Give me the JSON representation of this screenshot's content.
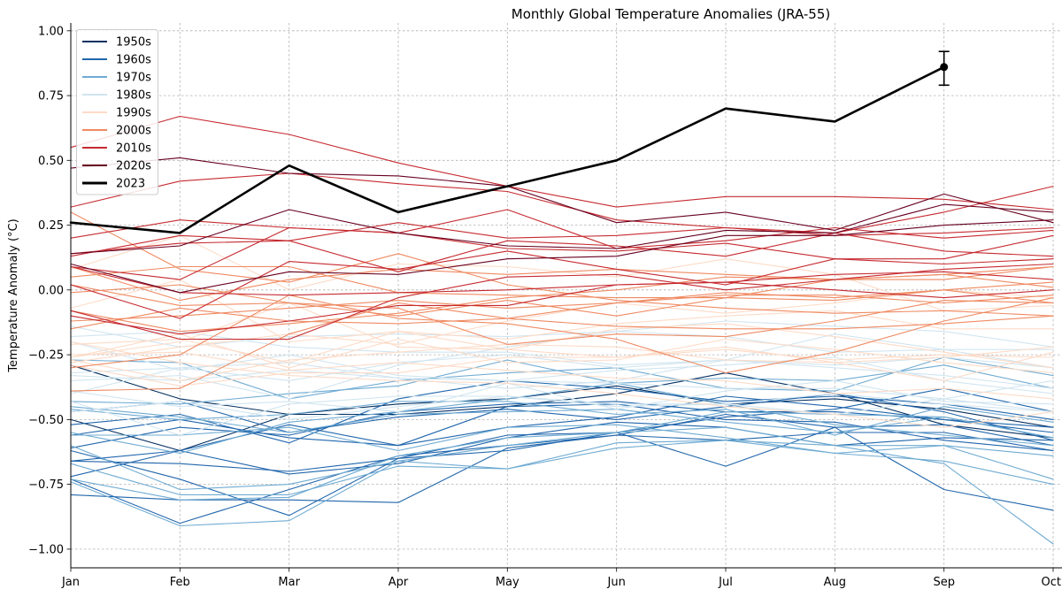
{
  "chart_data": {
    "type": "line",
    "title": "Monthly Global Temperature Anomalies (JRA-55)",
    "ylabel": "Temperature Anomaly (°C)",
    "categories": [
      "Jan",
      "Feb",
      "Mar",
      "Apr",
      "May",
      "Jun",
      "Jul",
      "Aug",
      "Sep",
      "Oct"
    ],
    "ylim": [
      -1.072,
      1.03
    ],
    "yticks": [
      1.0,
      0.75,
      0.5,
      0.25,
      0.0,
      -0.25,
      -0.5,
      -0.75,
      -1.0
    ],
    "ytick_labels": [
      "1.00",
      "0.75",
      "0.50",
      "0.25",
      "0.00",
      "−0.25",
      "−0.50",
      "−0.75",
      "−1.00"
    ],
    "grid": true,
    "legend_position": "upper left",
    "series": [
      {
        "name": "1950s",
        "color": "#053061",
        "lines": [
          [
            -0.29,
            -0.42,
            -0.48,
            -0.48,
            -0.45,
            -0.4,
            -0.32,
            -0.4,
            -0.52,
            -0.57
          ],
          [
            -0.5,
            -0.62,
            -0.48,
            -0.44,
            -0.42,
            -0.37,
            -0.44,
            -0.42,
            -0.46,
            -0.53
          ]
        ]
      },
      {
        "name": "1960s",
        "color": "#2166ac",
        "lines": [
          [
            -0.61,
            -0.53,
            -0.56,
            -0.47,
            -0.44,
            -0.43,
            -0.47,
            -0.47,
            -0.5,
            -0.55
          ],
          [
            -0.47,
            -0.43,
            -0.55,
            -0.49,
            -0.46,
            -0.5,
            -0.45,
            -0.4,
            -0.47,
            -0.58
          ],
          [
            -0.56,
            -0.5,
            -0.57,
            -0.6,
            -0.53,
            -0.49,
            -0.41,
            -0.45,
            -0.5,
            -0.53
          ],
          [
            -0.66,
            -0.67,
            -0.7,
            -0.65,
            -0.62,
            -0.55,
            -0.49,
            -0.46,
            -0.38,
            -0.47
          ],
          [
            -0.62,
            -0.73,
            -0.87,
            -0.65,
            -0.56,
            -0.55,
            -0.68,
            -0.53,
            -0.77,
            -0.85
          ],
          [
            -0.72,
            -0.62,
            -0.71,
            -0.67,
            -0.57,
            -0.51,
            -0.53,
            -0.6,
            -0.57,
            -0.58
          ],
          [
            -0.66,
            -0.62,
            -0.52,
            -0.6,
            -0.45,
            -0.44,
            -0.5,
            -0.51,
            -0.58,
            -0.62
          ],
          [
            -0.73,
            -0.9,
            -0.77,
            -0.64,
            -0.6,
            -0.56,
            -0.48,
            -0.53,
            -0.52,
            -0.6
          ],
          [
            -0.79,
            -0.81,
            -0.81,
            -0.82,
            -0.61,
            -0.56,
            -0.58,
            -0.55,
            -0.55,
            -0.62
          ],
          [
            -0.52,
            -0.48,
            -0.59,
            -0.42,
            -0.35,
            -0.38,
            -0.43,
            -0.41,
            -0.44,
            -0.5
          ]
        ]
      },
      {
        "name": "1970s",
        "color": "#6fabd2",
        "lines": [
          [
            -0.45,
            -0.49,
            -0.55,
            -0.48,
            -0.47,
            -0.46,
            -0.51,
            -0.55,
            -0.49,
            -0.57
          ],
          [
            -0.6,
            -0.77,
            -0.75,
            -0.66,
            -0.69,
            -0.61,
            -0.58,
            -0.6,
            -0.6,
            -0.73
          ],
          [
            -0.73,
            -0.81,
            -0.8,
            -0.64,
            -0.57,
            -0.55,
            -0.47,
            -0.48,
            -0.49,
            -0.57
          ],
          [
            -0.43,
            -0.44,
            -0.4,
            -0.37,
            -0.27,
            -0.36,
            -0.44,
            -0.52,
            -0.56,
            -0.6
          ],
          [
            -0.74,
            -0.91,
            -0.89,
            -0.66,
            -0.6,
            -0.55,
            -0.53,
            -0.6,
            -0.67,
            -0.98
          ],
          [
            -0.56,
            -0.56,
            -0.53,
            -0.62,
            -0.53,
            -0.52,
            -0.57,
            -0.63,
            -0.6,
            -0.64
          ],
          [
            -0.67,
            -0.79,
            -0.79,
            -0.68,
            -0.69,
            -0.59,
            -0.58,
            -0.63,
            -0.66,
            -0.75
          ],
          [
            -0.27,
            -0.28,
            -0.42,
            -0.35,
            -0.32,
            -0.3,
            -0.38,
            -0.39,
            -0.26,
            -0.33
          ],
          [
            -0.46,
            -0.5,
            -0.48,
            -0.43,
            -0.43,
            -0.48,
            -0.46,
            -0.56,
            -0.45,
            -0.51
          ],
          [
            -0.55,
            -0.63,
            -0.51,
            -0.47,
            -0.42,
            -0.36,
            -0.34,
            -0.35,
            -0.29,
            -0.38
          ]
        ]
      },
      {
        "name": "1980s",
        "color": "#d1e5f0",
        "lines": [
          [
            -0.32,
            -0.3,
            -0.35,
            -0.28,
            -0.25,
            -0.3,
            -0.27,
            -0.3,
            -0.33,
            -0.38
          ],
          [
            -0.2,
            -0.31,
            -0.25,
            -0.33,
            -0.35,
            -0.31,
            -0.29,
            -0.26,
            -0.35,
            -0.4
          ],
          [
            -0.47,
            -0.43,
            -0.5,
            -0.45,
            -0.41,
            -0.44,
            -0.44,
            -0.48,
            -0.42,
            -0.47
          ],
          [
            -0.18,
            -0.16,
            -0.22,
            -0.24,
            -0.24,
            -0.29,
            -0.27,
            -0.17,
            -0.23,
            -0.3
          ],
          [
            -0.39,
            -0.45,
            -0.43,
            -0.47,
            -0.36,
            -0.46,
            -0.39,
            -0.35,
            -0.43,
            -0.44
          ],
          [
            -0.43,
            -0.56,
            -0.44,
            -0.41,
            -0.41,
            -0.45,
            -0.44,
            -0.4,
            -0.44,
            -0.47
          ],
          [
            -0.33,
            -0.35,
            -0.31,
            -0.34,
            -0.35,
            -0.36,
            -0.38,
            -0.38,
            -0.42,
            -0.35
          ],
          [
            -0.35,
            -0.33,
            -0.42,
            -0.29,
            -0.22,
            -0.16,
            -0.12,
            -0.14,
            -0.16,
            -0.22
          ],
          [
            -0.14,
            -0.22,
            -0.18,
            -0.17,
            -0.18,
            -0.16,
            -0.18,
            -0.24,
            -0.23,
            -0.23
          ],
          [
            -0.4,
            -0.3,
            -0.28,
            -0.34,
            -0.38,
            -0.35,
            -0.27,
            -0.29,
            -0.26,
            -0.3
          ]
        ]
      },
      {
        "name": "1990s",
        "color": "#fddbc7",
        "lines": [
          [
            -0.26,
            -0.2,
            -0.05,
            -0.22,
            -0.23,
            -0.26,
            -0.22,
            -0.28,
            -0.35,
            -0.24
          ],
          [
            -0.21,
            -0.19,
            -0.28,
            -0.16,
            -0.23,
            -0.15,
            -0.13,
            -0.18,
            -0.24,
            -0.3
          ],
          [
            -0.2,
            -0.28,
            -0.33,
            -0.35,
            -0.36,
            -0.4,
            -0.45,
            -0.48,
            -0.53,
            -0.47
          ],
          [
            -0.25,
            -0.24,
            -0.31,
            -0.28,
            -0.31,
            -0.34,
            -0.35,
            -0.4,
            -0.38,
            -0.42
          ],
          [
            -0.27,
            -0.35,
            -0.27,
            -0.24,
            -0.21,
            -0.22,
            -0.27,
            -0.28,
            -0.26,
            -0.22
          ],
          [
            -0.07,
            0.04,
            -0.2,
            -0.16,
            -0.19,
            -0.13,
            -0.1,
            -0.08,
            -0.15,
            -0.15
          ],
          [
            -0.26,
            -0.17,
            -0.3,
            -0.19,
            -0.28,
            -0.27,
            -0.19,
            -0.23,
            -0.28,
            -0.32
          ],
          [
            -0.28,
            -0.22,
            -0.17,
            -0.21,
            -0.12,
            -0.05,
            -0.09,
            -0.05,
            0.0,
            -0.03
          ],
          [
            0.08,
            0.21,
            0.0,
            0.1,
            0.09,
            0.05,
            0.12,
            0.06,
            -0.08,
            -0.06
          ],
          [
            -0.29,
            -0.37,
            -0.32,
            -0.32,
            -0.26,
            -0.26,
            -0.23,
            -0.27,
            -0.25,
            -0.26
          ]
        ]
      },
      {
        "name": "2000s",
        "color": "#ef8a62",
        "lines": [
          [
            -0.39,
            -0.38,
            -0.17,
            -0.05,
            -0.11,
            -0.14,
            -0.15,
            -0.15,
            -0.13,
            -0.1
          ],
          [
            -0.12,
            -0.1,
            -0.07,
            -0.04,
            -0.07,
            -0.05,
            -0.02,
            -0.02,
            -0.05,
            -0.02
          ],
          [
            0.05,
            0.09,
            0.09,
            -0.01,
            -0.02,
            -0.03,
            -0.03,
            -0.04,
            0.0,
            -0.05
          ],
          [
            0.02,
            -0.06,
            -0.05,
            -0.1,
            -0.04,
            -0.1,
            -0.03,
            0.04,
            0.04,
            0.09
          ],
          [
            -0.01,
            0.02,
            -0.05,
            -0.07,
            -0.21,
            -0.17,
            -0.18,
            -0.12,
            -0.04,
            -0.05
          ],
          [
            0.09,
            -0.04,
            0.04,
            0.08,
            0.06,
            0.08,
            0.06,
            0.04,
            0.06,
            0.09
          ],
          [
            -0.15,
            -0.07,
            -0.12,
            -0.13,
            -0.11,
            -0.05,
            -0.01,
            -0.03,
            0.0,
            0.03
          ],
          [
            0.3,
            0.08,
            0.03,
            0.14,
            0.02,
            -0.04,
            -0.07,
            -0.09,
            -0.08,
            -0.1
          ],
          [
            -0.3,
            -0.25,
            -0.02,
            -0.11,
            -0.13,
            -0.19,
            -0.32,
            -0.24,
            -0.12,
            -0.03
          ],
          [
            -0.08,
            -0.16,
            -0.13,
            -0.09,
            -0.03,
            0.0,
            0.05,
            0.04,
            0.06,
            0.01
          ]
        ]
      },
      {
        "name": "2010s",
        "color": "#c62a30",
        "lines": [
          [
            0.32,
            0.42,
            0.45,
            0.41,
            0.38,
            0.27,
            0.24,
            0.22,
            0.15,
            0.13
          ],
          [
            -0.1,
            -0.17,
            -0.12,
            -0.06,
            -0.06,
            0.02,
            0.03,
            0.0,
            -0.03,
            0.0
          ],
          [
            -0.08,
            -0.19,
            -0.19,
            -0.03,
            0.05,
            0.06,
            0.0,
            0.04,
            0.08,
            0.1
          ],
          [
            0.09,
            -0.01,
            -0.02,
            -0.01,
            0.0,
            0.02,
            0.03,
            0.06,
            0.07,
            0.04
          ],
          [
            0.02,
            -0.11,
            0.11,
            0.08,
            0.15,
            0.08,
            0.02,
            0.12,
            0.1,
            0.12
          ],
          [
            0.14,
            0.18,
            0.19,
            0.07,
            0.19,
            0.17,
            0.13,
            0.22,
            0.3,
            0.4
          ],
          [
            0.55,
            0.67,
            0.6,
            0.49,
            0.4,
            0.32,
            0.36,
            0.36,
            0.35,
            0.31
          ],
          [
            0.2,
            0.27,
            0.24,
            0.22,
            0.31,
            0.16,
            0.19,
            0.24,
            0.2,
            0.23
          ],
          [
            0.09,
            0.04,
            0.24,
            0.22,
            0.16,
            0.15,
            0.18,
            0.12,
            0.12,
            0.21
          ],
          [
            0.13,
            0.21,
            0.19,
            0.26,
            0.2,
            0.21,
            0.24,
            0.21,
            0.22,
            0.24
          ]
        ]
      },
      {
        "name": "2020s",
        "color": "#67001f",
        "lines": [
          [
            0.47,
            0.51,
            0.45,
            0.44,
            0.4,
            0.26,
            0.3,
            0.23,
            0.37,
            0.26
          ],
          [
            0.1,
            -0.01,
            0.07,
            0.06,
            0.12,
            0.13,
            0.21,
            0.21,
            0.25,
            0.27
          ],
          [
            0.14,
            0.17,
            0.31,
            0.22,
            0.17,
            0.16,
            0.23,
            0.22,
            0.33,
            0.3
          ]
        ]
      },
      {
        "name": "2023",
        "color": "#000000",
        "emphasis": true,
        "lines": [
          [
            0.26,
            0.22,
            0.48,
            0.3,
            0.4,
            0.5,
            0.7,
            0.65,
            0.86
          ]
        ],
        "error_bar": {
          "value": 0.86,
          "lower": 0.79,
          "upper": 0.92
        }
      }
    ]
  }
}
